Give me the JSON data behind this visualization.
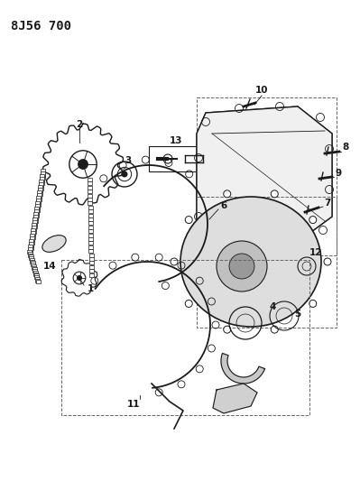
{
  "title": "8J56 700",
  "bg_color": "#ffffff",
  "line_color": "#1a1a1a",
  "title_fontsize": 10,
  "label_fontsize": 7.5,
  "figw": 3.99,
  "figh": 5.33,
  "dpi": 100
}
